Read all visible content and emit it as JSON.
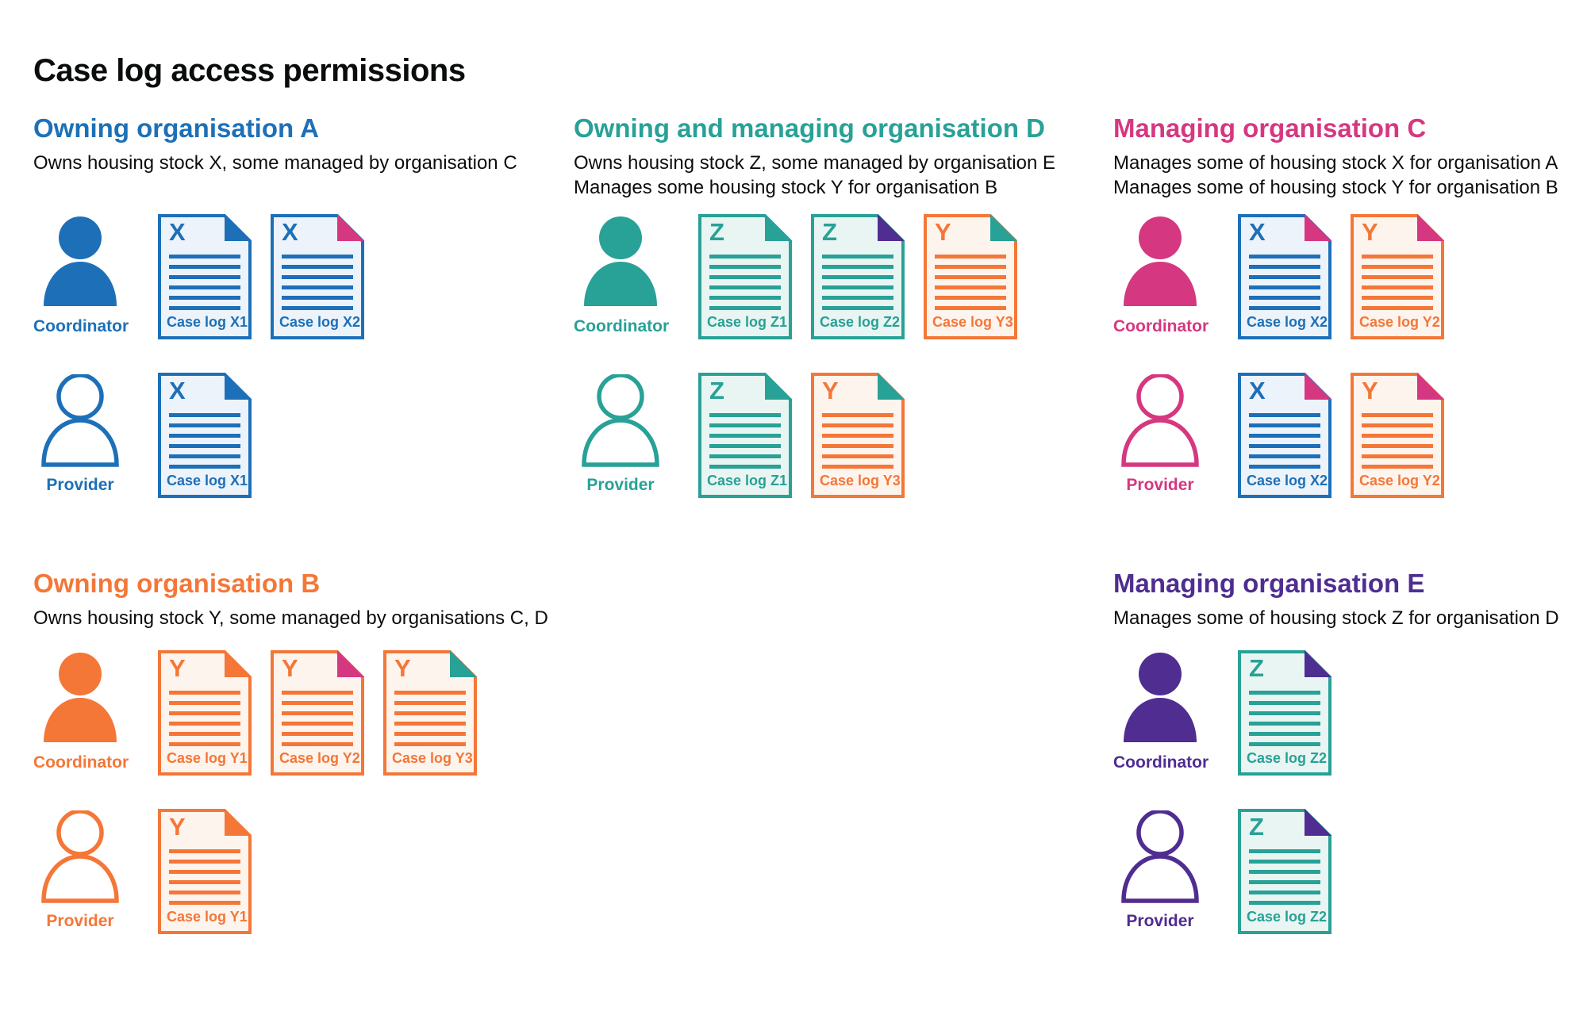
{
  "page": {
    "title": "Case log access permissions"
  },
  "colors": {
    "blue": {
      "main": "#1d70b8",
      "light": "#edf3fa"
    },
    "teal": {
      "main": "#28a197",
      "light": "#e9f5f2"
    },
    "orange": {
      "main": "#f47738",
      "light": "#fdf4ed"
    },
    "pink": {
      "main": "#d53880",
      "light": "#fbeff5"
    },
    "purple": {
      "main": "#4f2d91",
      "light": "#efecf6"
    },
    "text": "#0b0c0c"
  },
  "icons": {
    "coordinator": "person-filled-icon",
    "provider": "person-outline-icon",
    "case_log": "document-icon"
  },
  "sections": [
    {
      "id": "org-a",
      "color": "blue",
      "column": 0,
      "row": 0,
      "heading": "Owning organisation A",
      "subtitle_lines": [
        "Owns housing stock X, some managed by organisation C"
      ],
      "roles": [
        {
          "label": "Coordinator",
          "filled": true,
          "docs": [
            {
              "letter": "X",
              "label": "Case log X1",
              "doc_color": "blue",
              "fold_color": "blue"
            },
            {
              "letter": "X",
              "label": "Case log X2",
              "doc_color": "blue",
              "fold_color": "pink"
            }
          ]
        },
        {
          "label": "Provider",
          "filled": false,
          "docs": [
            {
              "letter": "X",
              "label": "Case log X1",
              "doc_color": "blue",
              "fold_color": "blue"
            }
          ]
        }
      ]
    },
    {
      "id": "org-d",
      "color": "teal",
      "column": 1,
      "row": 0,
      "heading": "Owning and managing organisation D",
      "subtitle_lines": [
        "Owns housing stock Z, some managed by organisation E",
        "Manages some housing stock Y for organisation B"
      ],
      "roles": [
        {
          "label": "Coordinator",
          "filled": true,
          "docs": [
            {
              "letter": "Z",
              "label": "Case log Z1",
              "doc_color": "teal",
              "fold_color": "teal"
            },
            {
              "letter": "Z",
              "label": "Case log Z2",
              "doc_color": "teal",
              "fold_color": "purple"
            },
            {
              "letter": "Y",
              "label": "Case log Y3",
              "doc_color": "orange",
              "fold_color": "teal"
            }
          ]
        },
        {
          "label": "Provider",
          "filled": false,
          "docs": [
            {
              "letter": "Z",
              "label": "Case log Z1",
              "doc_color": "teal",
              "fold_color": "teal"
            },
            {
              "letter": "Y",
              "label": "Case log Y3",
              "doc_color": "orange",
              "fold_color": "teal"
            }
          ]
        }
      ]
    },
    {
      "id": "org-c",
      "color": "pink",
      "column": 2,
      "row": 0,
      "heading": "Managing organisation C",
      "subtitle_lines": [
        "Manages some of housing stock X for organisation A",
        "Manages some of housing stock Y for organisation B"
      ],
      "roles": [
        {
          "label": "Coordinator",
          "filled": true,
          "docs": [
            {
              "letter": "X",
              "label": "Case log X2",
              "doc_color": "blue",
              "fold_color": "pink"
            },
            {
              "letter": "Y",
              "label": "Case log Y2",
              "doc_color": "orange",
              "fold_color": "pink"
            }
          ]
        },
        {
          "label": "Provider",
          "filled": false,
          "docs": [
            {
              "letter": "X",
              "label": "Case log X2",
              "doc_color": "blue",
              "fold_color": "pink"
            },
            {
              "letter": "Y",
              "label": "Case log Y2",
              "doc_color": "orange",
              "fold_color": "pink"
            }
          ]
        }
      ]
    },
    {
      "id": "org-b",
      "color": "orange",
      "column": 0,
      "row": 1,
      "heading": "Owning organisation B",
      "subtitle_lines": [
        "Owns housing stock Y, some managed by organisations C, D"
      ],
      "roles": [
        {
          "label": "Coordinator",
          "filled": true,
          "docs": [
            {
              "letter": "Y",
              "label": "Case log Y1",
              "doc_color": "orange",
              "fold_color": "orange"
            },
            {
              "letter": "Y",
              "label": "Case log Y2",
              "doc_color": "orange",
              "fold_color": "pink"
            },
            {
              "letter": "Y",
              "label": "Case log Y3",
              "doc_color": "orange",
              "fold_color": "teal"
            }
          ]
        },
        {
          "label": "Provider",
          "filled": false,
          "docs": [
            {
              "letter": "Y",
              "label": "Case log Y1",
              "doc_color": "orange",
              "fold_color": "orange"
            }
          ]
        }
      ]
    },
    {
      "id": "org-e",
      "color": "purple",
      "column": 2,
      "row": 1,
      "heading": "Managing organisation E",
      "subtitle_lines": [
        "Manages some of housing stock Z for organisation D"
      ],
      "roles": [
        {
          "label": "Coordinator",
          "filled": true,
          "docs": [
            {
              "letter": "Z",
              "label": "Case log Z2",
              "doc_color": "teal",
              "fold_color": "purple"
            }
          ]
        },
        {
          "label": "Provider",
          "filled": false,
          "docs": [
            {
              "letter": "Z",
              "label": "Case log Z2",
              "doc_color": "teal",
              "fold_color": "purple"
            }
          ]
        }
      ]
    }
  ]
}
